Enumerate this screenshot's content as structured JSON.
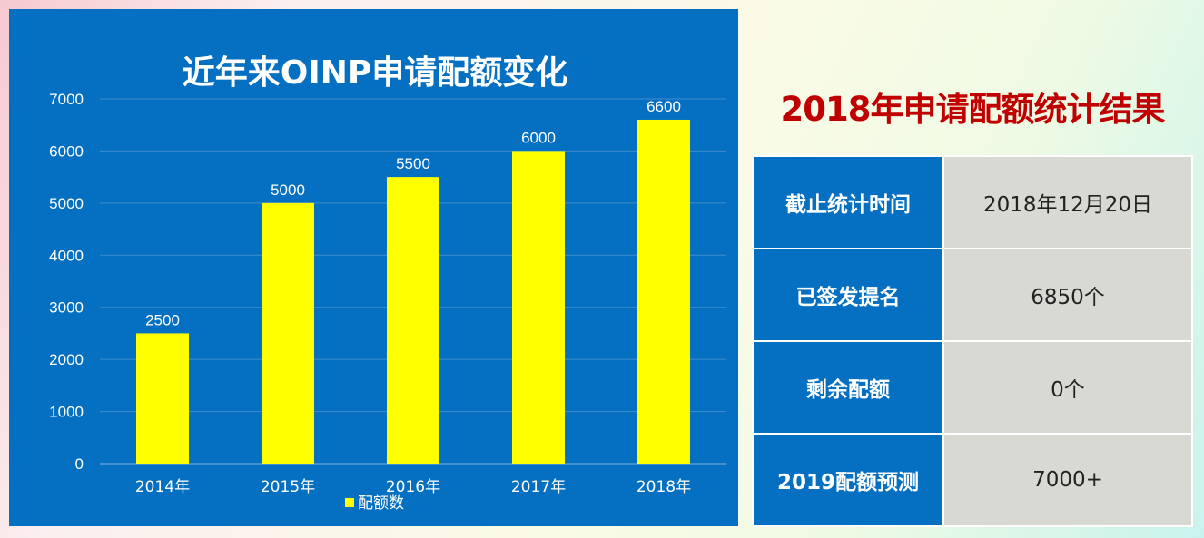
{
  "chart_data": {
    "type": "bar",
    "title": "近年来OINP申请配额变化",
    "categories": [
      "2014年",
      "2015年",
      "2016年",
      "2017年",
      "2018年"
    ],
    "series": [
      {
        "name": "配额数",
        "values": [
          2500,
          5000,
          5500,
          6000,
          6600
        ],
        "color": "#ffff00"
      }
    ],
    "ylim": [
      0,
      7000
    ],
    "yticks": [
      0,
      1000,
      2000,
      3000,
      4000,
      5000,
      6000,
      7000
    ],
    "grid": true,
    "legend_position": "bottom",
    "background": "#0570c1"
  },
  "stats": {
    "title": "2018年申请配额统计结果",
    "rows": [
      {
        "label": "截止统计时间",
        "value": "2018年12月20日"
      },
      {
        "label": "已签发提名",
        "value": "6850个"
      },
      {
        "label": "剩余配额",
        "value": "0个"
      },
      {
        "label": "2019配额预测",
        "value": "7000+"
      }
    ]
  },
  "colors": {
    "panel_blue": "#0570c1",
    "bar_yellow": "#ffff00",
    "title_red": "#c00000",
    "cell_gray": "#d9d9d4"
  }
}
